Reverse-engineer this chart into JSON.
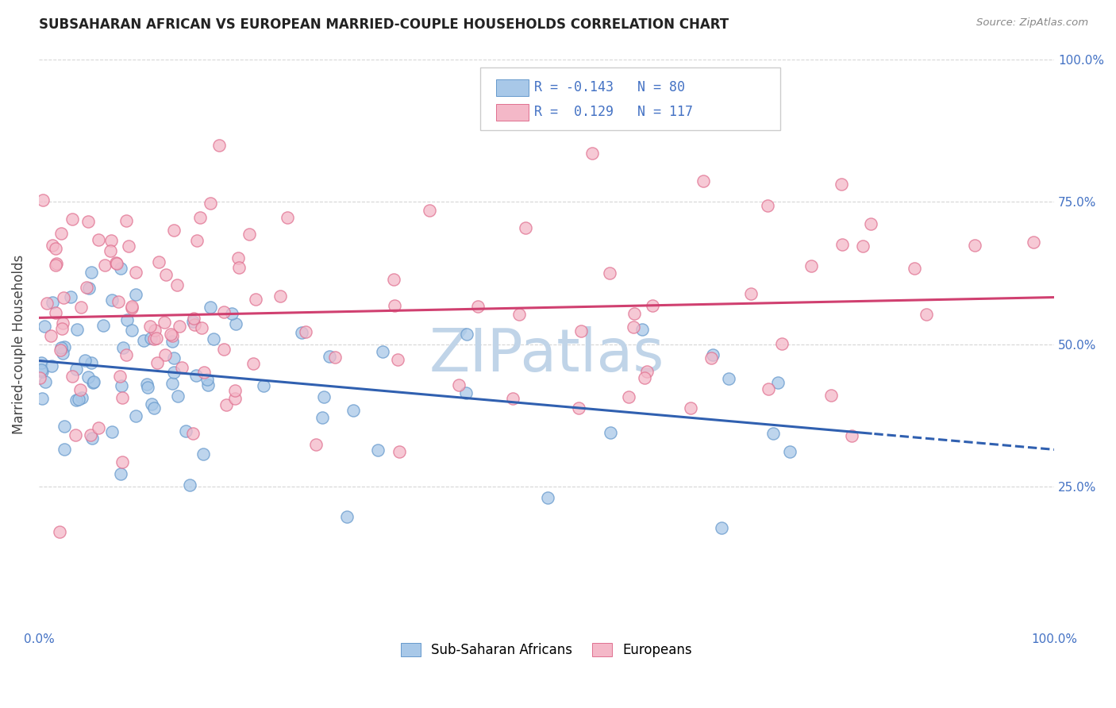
{
  "title": "SUBSAHARAN AFRICAN VS EUROPEAN MARRIED-COUPLE HOUSEHOLDS CORRELATION CHART",
  "source": "Source: ZipAtlas.com",
  "ylabel": "Married-couple Households",
  "legend_label1": "Sub-Saharan Africans",
  "legend_label2": "Europeans",
  "r1": "-0.143",
  "n1": "80",
  "r2": "0.129",
  "n2": "117",
  "blue_color": "#a8c8e8",
  "blue_edge_color": "#6699cc",
  "pink_color": "#f4b8c8",
  "pink_edge_color": "#e07090",
  "blue_line_color": "#3060b0",
  "pink_line_color": "#d04070",
  "watermark_color": "#c0d4e8",
  "background_color": "#ffffff",
  "grid_color": "#cccccc",
  "title_color": "#222222",
  "axis_label_color": "#4472c4",
  "ylabel_color": "#444444",
  "seed": 7
}
